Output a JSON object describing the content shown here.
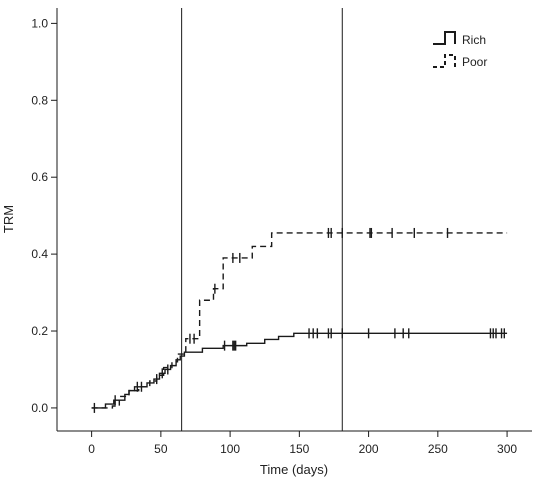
{
  "chart_data": {
    "type": "line",
    "subtype": "step",
    "xlabel": "Time (days)",
    "ylabel": "TRM",
    "xlim": [
      -25,
      318
    ],
    "ylim": [
      -0.06,
      1.04
    ],
    "xticks": [
      0,
      50,
      100,
      150,
      200,
      250,
      300
    ],
    "yticks": [
      0.0,
      0.2,
      0.4,
      0.6,
      0.8,
      1.0
    ],
    "xtick_labels": [
      "0",
      "50",
      "100",
      "150",
      "200",
      "250",
      "300"
    ],
    "ytick_labels": [
      "0.0",
      "0.2",
      "0.4",
      "0.6",
      "0.8",
      "1.0"
    ],
    "vlines": [
      65,
      181
    ],
    "legend_position": "top-right",
    "series": [
      {
        "name": "Rich",
        "style": "solid",
        "color": "#1a1a1a",
        "steps": [
          {
            "x": 0,
            "y": 0.0
          },
          {
            "x": 10,
            "y": 0.01
          },
          {
            "x": 16,
            "y": 0.02
          },
          {
            "x": 24,
            "y": 0.035
          },
          {
            "x": 27,
            "y": 0.045
          },
          {
            "x": 31,
            "y": 0.055
          },
          {
            "x": 40,
            "y": 0.065
          },
          {
            "x": 45,
            "y": 0.075
          },
          {
            "x": 49,
            "y": 0.09
          },
          {
            "x": 53,
            "y": 0.1
          },
          {
            "x": 57,
            "y": 0.11
          },
          {
            "x": 61,
            "y": 0.125
          },
          {
            "x": 64,
            "y": 0.135
          },
          {
            "x": 67,
            "y": 0.145
          },
          {
            "x": 80,
            "y": 0.155
          },
          {
            "x": 95,
            "y": 0.162
          },
          {
            "x": 112,
            "y": 0.168
          },
          {
            "x": 125,
            "y": 0.178
          },
          {
            "x": 135,
            "y": 0.186
          },
          {
            "x": 146,
            "y": 0.194
          }
        ],
        "end_x": 300,
        "censor_x": [
          2,
          17,
          33,
          36,
          47,
          51,
          55,
          96,
          102,
          103,
          104,
          157,
          160,
          163,
          171,
          173,
          181,
          200,
          219,
          225,
          229,
          288,
          290,
          292,
          296,
          298
        ]
      },
      {
        "name": "Poor",
        "style": "dashed",
        "color": "#1a1a1a",
        "steps": [
          {
            "x": 0,
            "y": 0.0
          },
          {
            "x": 15,
            "y": 0.005
          },
          {
            "x": 20,
            "y": 0.03
          },
          {
            "x": 27,
            "y": 0.045
          },
          {
            "x": 34,
            "y": 0.055
          },
          {
            "x": 42,
            "y": 0.07
          },
          {
            "x": 47,
            "y": 0.085
          },
          {
            "x": 52,
            "y": 0.105
          },
          {
            "x": 58,
            "y": 0.12
          },
          {
            "x": 62,
            "y": 0.14
          },
          {
            "x": 68,
            "y": 0.18
          },
          {
            "x": 78,
            "y": 0.28
          },
          {
            "x": 88,
            "y": 0.31
          },
          {
            "x": 95,
            "y": 0.39
          },
          {
            "x": 116,
            "y": 0.42
          },
          {
            "x": 130,
            "y": 0.455
          }
        ],
        "end_x": 300,
        "censor_x": [
          71,
          74,
          89,
          102,
          107,
          171,
          173,
          181,
          201,
          202,
          217,
          233,
          257
        ]
      }
    ]
  }
}
